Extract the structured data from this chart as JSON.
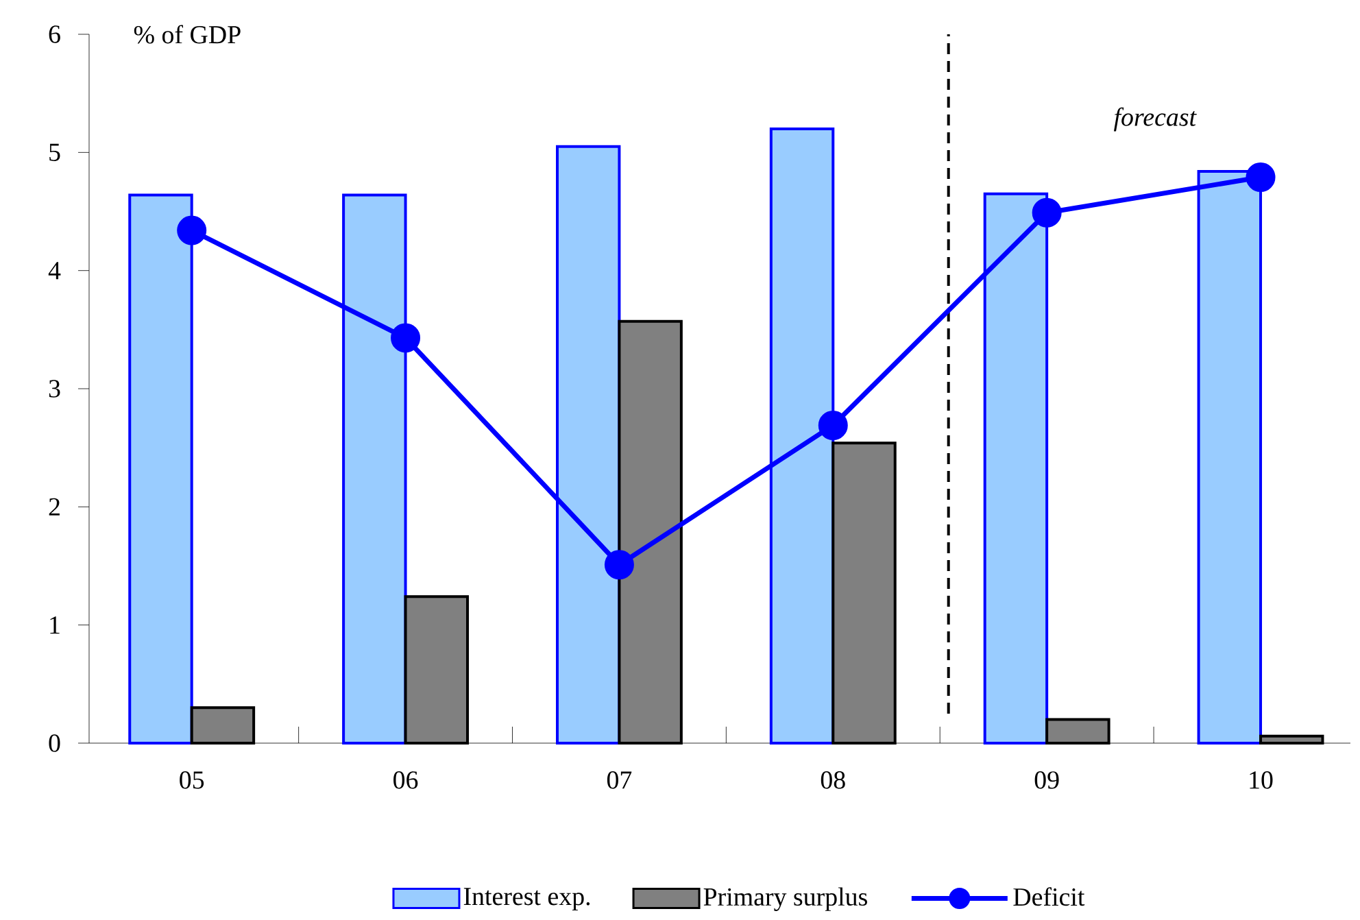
{
  "chart_data": {
    "type": "bar",
    "ylabel": "% of GDP",
    "categories": [
      "05",
      "06",
      "07",
      "08",
      "09",
      "10"
    ],
    "series": [
      {
        "name": "Interest exp.",
        "color": "#99ccff",
        "values": [
          4.64,
          4.64,
          5.05,
          5.2,
          4.65,
          4.84
        ]
      },
      {
        "name": "Primary surplus",
        "color": "#808080",
        "values": [
          0.3,
          1.24,
          3.57,
          2.54,
          0.2,
          0.06
        ]
      },
      {
        "name": "Deficit",
        "type": "line",
        "color": "#0000ff",
        "values": [
          4.34,
          3.43,
          1.51,
          2.69,
          4.49,
          4.79
        ]
      }
    ],
    "ylim": [
      0,
      6
    ],
    "yticks": [
      0,
      1,
      2,
      3,
      4,
      5,
      6
    ],
    "annotations": [
      "forecast"
    ],
    "legend": "bottom",
    "marker": "circle"
  }
}
